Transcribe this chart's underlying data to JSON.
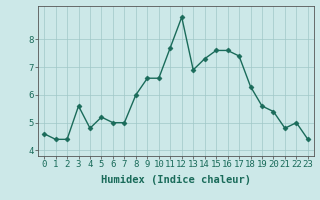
{
  "x": [
    0,
    1,
    2,
    3,
    4,
    5,
    6,
    7,
    8,
    9,
    10,
    11,
    12,
    13,
    14,
    15,
    16,
    17,
    18,
    19,
    20,
    21,
    22,
    23
  ],
  "y": [
    4.6,
    4.4,
    4.4,
    5.6,
    4.8,
    5.2,
    5.0,
    5.0,
    6.0,
    6.6,
    6.6,
    7.7,
    8.8,
    6.9,
    7.3,
    7.6,
    7.6,
    7.4,
    6.3,
    5.6,
    5.4,
    4.8,
    5.0,
    4.4
  ],
  "line_color": "#1a6b5a",
  "marker": "D",
  "markersize": 2.5,
  "linewidth": 1.0,
  "bg_color": "#cce8e8",
  "grid_color": "#a0c8c8",
  "xlabel": "Humidex (Indice chaleur)",
  "xlim": [
    -0.5,
    23.5
  ],
  "ylim": [
    3.8,
    9.2
  ],
  "yticks": [
    4,
    5,
    6,
    7,
    8
  ],
  "xticks": [
    0,
    1,
    2,
    3,
    4,
    5,
    6,
    7,
    8,
    9,
    10,
    11,
    12,
    13,
    14,
    15,
    16,
    17,
    18,
    19,
    20,
    21,
    22,
    23
  ],
  "xlabel_fontsize": 7.5,
  "tick_fontsize": 6.5
}
